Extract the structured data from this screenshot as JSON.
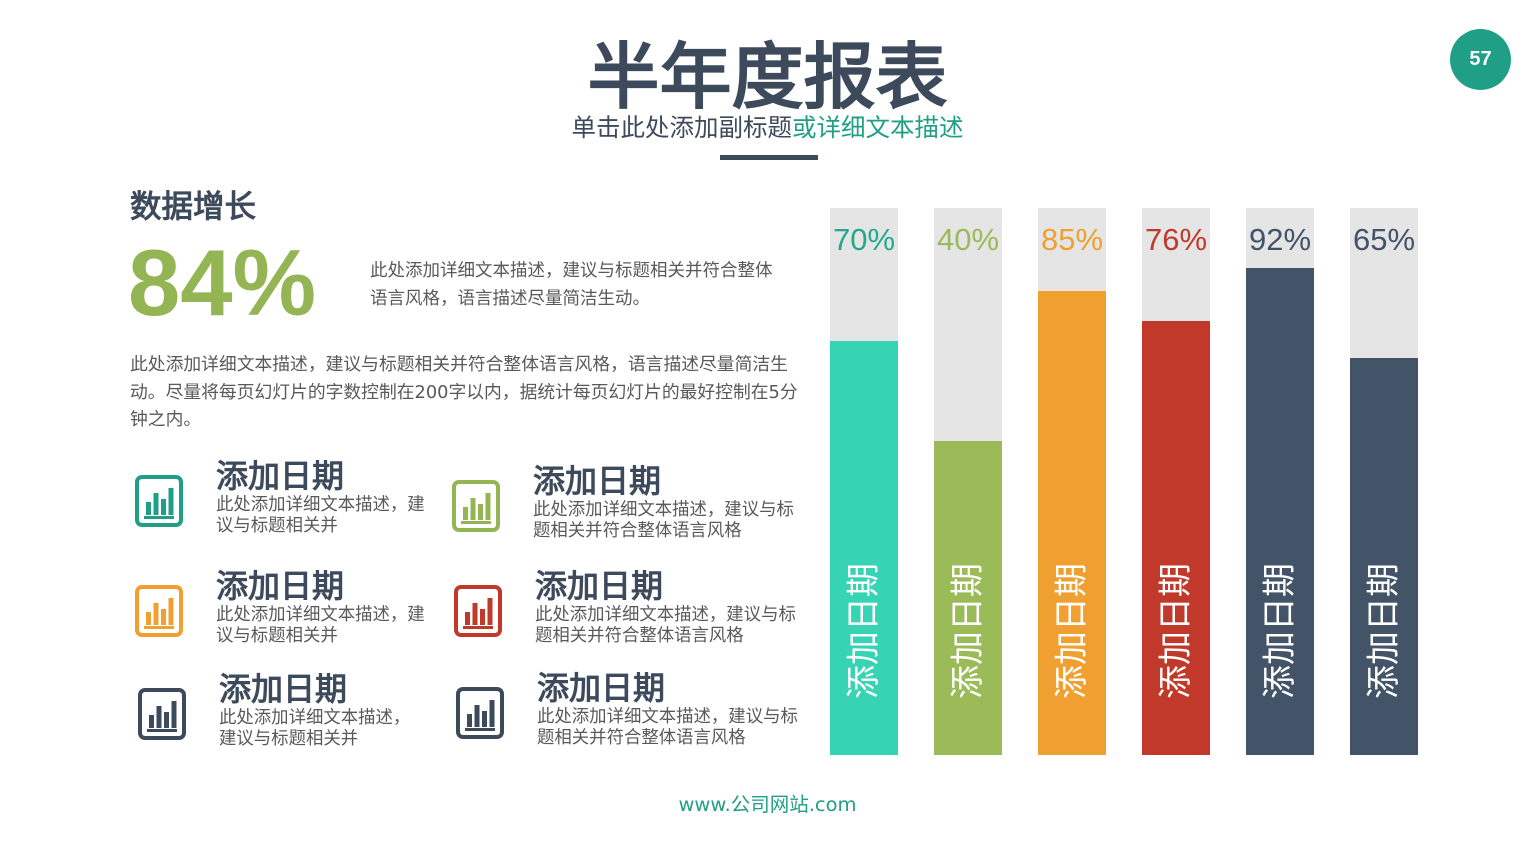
{
  "page_number": "57",
  "colors": {
    "slate": "#3d4a5c",
    "teal": "#1f9f85",
    "green": "#94b553",
    "body_text": "#595959",
    "track": "#e5e5e5",
    "bar_text": "#ffffff"
  },
  "header": {
    "title": "半年度报表",
    "subtitle_main": "单击此处添加副标题",
    "subtitle_accent": "或详细文本描述"
  },
  "left": {
    "heading": "数据增长",
    "stat_value": "84%",
    "stat_description": [
      "此处添加详细文本描述，建议与标题相关并符合整体",
      "语言风格，语言描述尽量简洁生动。"
    ],
    "paragraph": [
      "此处添加详细文本描述，建议与标题相关并符合整体语言风格，语言描述尽量简洁生",
      "动。尽量将每页幻灯片的字数控制在200字以内，据统计每页幻灯片的最好控制在5分",
      "钟之内。"
    ],
    "items": [
      {
        "icon": "bar-chart-icon",
        "color": "#1f9f85",
        "title": "添加日期",
        "lines": [
          "此处添加详细文本描述，建",
          "议与标题相关并"
        ]
      },
      {
        "icon": "bar-chart-icon",
        "color": "#94b553",
        "title": "添加日期",
        "lines": [
          "此处添加详细文本描述，建议与标",
          "题相关并符合整体语言风格"
        ]
      },
      {
        "icon": "bar-chart-icon",
        "color": "#f0a030",
        "title": "添加日期",
        "lines": [
          "此处添加详细文本描述，建",
          "议与标题相关并"
        ]
      },
      {
        "icon": "bar-chart-icon",
        "color": "#c0392b",
        "title": "添加日期",
        "lines": [
          "此处添加详细文本描述，建议与标",
          "题相关并符合整体语言风格"
        ]
      },
      {
        "icon": "bar-chart-icon",
        "color": "#3d4a5c",
        "title": "添加日期",
        "lines": [
          "此处添加详细文本描述，",
          "建议与标题相关并"
        ]
      },
      {
        "icon": "bar-chart-icon",
        "color": "#3d4a5c",
        "title": "添加日期",
        "lines": [
          "此处添加详细文本描述，建议与标",
          "题相关并符合整体语言风格"
        ]
      }
    ]
  },
  "chart_data": {
    "type": "bar",
    "categories": [
      "添加日期",
      "添加日期",
      "添加日期",
      "添加日期",
      "添加日期",
      "添加日期"
    ],
    "values": [
      70,
      40,
      85,
      76,
      92,
      65
    ],
    "data_labels": [
      "70%",
      "40%",
      "85%",
      "76%",
      "92%",
      "65%"
    ],
    "colors": [
      "#36d3b4",
      "#9bbb59",
      "#f0a030",
      "#c0392b",
      "#435368",
      "#435368"
    ],
    "label_colors": [
      "#23a98c",
      "#9bbb59",
      "#f0a030",
      "#c0392b",
      "#435368",
      "#435368"
    ],
    "grid": false,
    "legend": false
  },
  "footer": {
    "website": "www.公司网站.com"
  }
}
